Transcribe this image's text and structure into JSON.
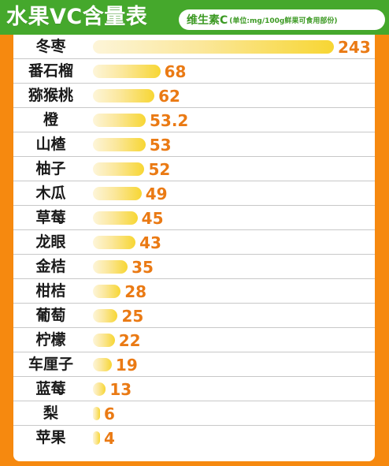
{
  "header": {
    "title": "水果VC含量表",
    "subtitle_main": "维生素C",
    "subtitle_unit": "(单位:mg/100g鲜果可食用部份)"
  },
  "colors": {
    "background": "#f6890f",
    "header": "#45a82c",
    "bar_start": "#fdf5d9",
    "bar_end": "#f7d633",
    "value_text": "#ea7a14"
  },
  "chart_data": {
    "type": "bar",
    "orientation": "horizontal",
    "title": "水果VC含量表",
    "subtitle": "维生素C(单位:mg/100g鲜果可食用部份)",
    "grid": false,
    "categories": [
      "冬枣",
      "番石榴",
      "猕猴桃",
      "橙",
      "山楂",
      "柚子",
      "木瓜",
      "草莓",
      "龙眼",
      "金桔",
      "柑桔",
      "葡萄",
      "柠檬",
      "车厘子",
      "蓝莓",
      "梨",
      "苹果"
    ],
    "values": [
      243,
      68,
      62,
      53.2,
      53,
      52,
      49,
      45,
      43,
      35,
      28,
      25,
      22,
      19,
      13,
      6,
      4
    ],
    "value_labels": [
      "243",
      "68",
      "62",
      "53.2",
      "53",
      "52",
      "49",
      "45",
      "43",
      "35",
      "28",
      "25",
      "22",
      "19",
      "13",
      "6",
      "4"
    ]
  }
}
